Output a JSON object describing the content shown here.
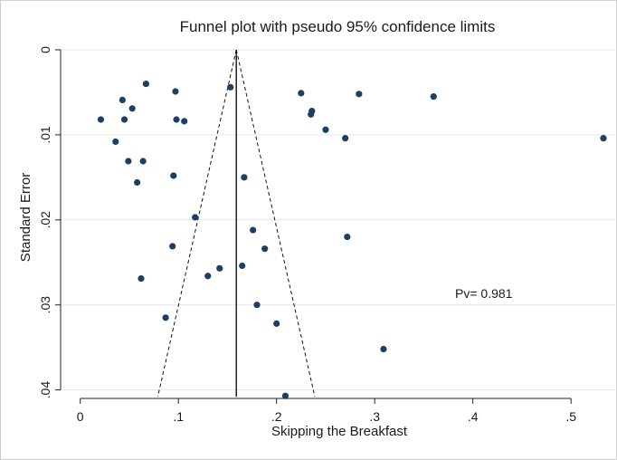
{
  "chart_data": {
    "type": "scatter",
    "title": "Funnel plot with pseudo 95% confidence limits",
    "xlabel": "Skipping the Breakfast",
    "ylabel": "Standard Error",
    "xlim": [
      -0.02,
      0.545
    ],
    "ylim": [
      0,
      0.041
    ],
    "y_reversed": true,
    "x_ticks": [
      0,
      0.1,
      0.2,
      0.3,
      0.4,
      0.5
    ],
    "x_tick_labels": [
      "0",
      ".1",
      ".2",
      ".3",
      ".4",
      ".5"
    ],
    "y_ticks": [
      0,
      0.01,
      0.02,
      0.03,
      0.04
    ],
    "y_tick_labels": [
      "0",
      ".01",
      ".02",
      ".03",
      ".04"
    ],
    "grid": "horizontal",
    "annotation": "Pv= 0.981",
    "pooled_estimate": 0.159,
    "confidence_limits": {
      "apex": [
        0.159,
        0.0
      ],
      "lower_end": [
        0.079,
        0.0408
      ],
      "upper_end": [
        0.239,
        0.0408
      ]
    },
    "points": [
      {
        "x": 0.021,
        "y": 0.0082
      },
      {
        "x": 0.036,
        "y": 0.0108
      },
      {
        "x": 0.043,
        "y": 0.0059
      },
      {
        "x": 0.045,
        "y": 0.0082
      },
      {
        "x": 0.049,
        "y": 0.0131
      },
      {
        "x": 0.053,
        "y": 0.0069
      },
      {
        "x": 0.058,
        "y": 0.0156
      },
      {
        "x": 0.062,
        "y": 0.0269
      },
      {
        "x": 0.064,
        "y": 0.0131
      },
      {
        "x": 0.067,
        "y": 0.004
      },
      {
        "x": 0.087,
        "y": 0.0315
      },
      {
        "x": 0.094,
        "y": 0.0231
      },
      {
        "x": 0.095,
        "y": 0.0148
      },
      {
        "x": 0.097,
        "y": 0.0049
      },
      {
        "x": 0.098,
        "y": 0.0082
      },
      {
        "x": 0.106,
        "y": 0.0084
      },
      {
        "x": 0.117,
        "y": 0.0197
      },
      {
        "x": 0.13,
        "y": 0.0266
      },
      {
        "x": 0.142,
        "y": 0.0257
      },
      {
        "x": 0.153,
        "y": 0.0044
      },
      {
        "x": 0.165,
        "y": 0.0254
      },
      {
        "x": 0.167,
        "y": 0.015
      },
      {
        "x": 0.176,
        "y": 0.0212
      },
      {
        "x": 0.18,
        "y": 0.03
      },
      {
        "x": 0.188,
        "y": 0.0234
      },
      {
        "x": 0.2,
        "y": 0.0322
      },
      {
        "x": 0.209,
        "y": 0.0407
      },
      {
        "x": 0.225,
        "y": 0.0051
      },
      {
        "x": 0.235,
        "y": 0.0076
      },
      {
        "x": 0.236,
        "y": 0.0072
      },
      {
        "x": 0.25,
        "y": 0.0094
      },
      {
        "x": 0.27,
        "y": 0.0104
      },
      {
        "x": 0.272,
        "y": 0.022
      },
      {
        "x": 0.284,
        "y": 0.0052
      },
      {
        "x": 0.309,
        "y": 0.0352
      },
      {
        "x": 0.36,
        "y": 0.0055
      },
      {
        "x": 0.533,
        "y": 0.0104
      }
    ],
    "colors": {
      "points": "#1f3f62",
      "grid": "#e6e6e6",
      "axis": "#222222",
      "frame": "#cfcfcf",
      "background": "#ffffff"
    }
  }
}
